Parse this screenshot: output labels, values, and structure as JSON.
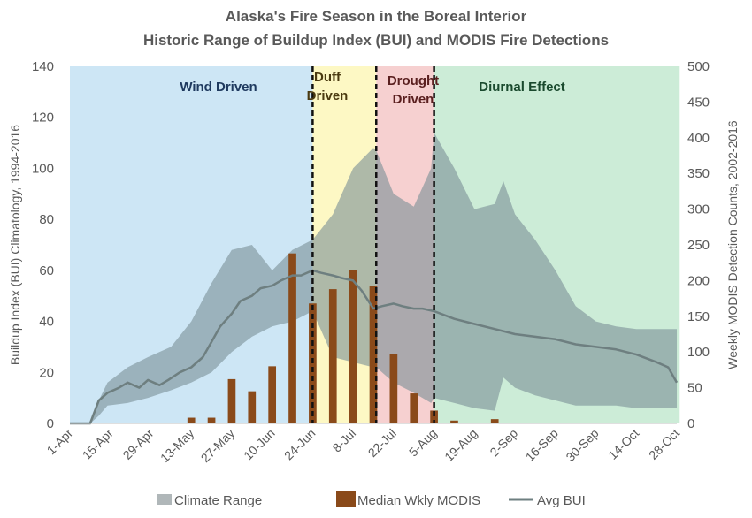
{
  "chart_data": {
    "type": "area",
    "title": "Alaska's Fire Season in the Boreal Interior",
    "subtitle": "Historic Range of Buildup Index (BUI) and MODIS Fire Detections",
    "ylabel": "Buildup Index (BUI) Climatology, 1994-2016",
    "y2label": "Weekly MODIS Detection Counts, 2002-2016",
    "ylim": [
      0,
      140
    ],
    "y2lim": [
      0,
      500
    ],
    "yticks": [
      "0",
      "20",
      "40",
      "60",
      "80",
      "100",
      "120",
      "140"
    ],
    "y2ticks": [
      "0",
      "50",
      "100",
      "150",
      "200",
      "250",
      "300",
      "350",
      "400",
      "450",
      "500"
    ],
    "x_ticks": [
      "1-Apr",
      "15-Apr",
      "29-Apr",
      "13-May",
      "27-May",
      "10-Jun",
      "24-Jun",
      "8-Jul",
      "22-Jul",
      "5-Aug",
      "19-Aug",
      "2-Sep",
      "16-Sep",
      "30-Sep",
      "14-Oct",
      "28-Oct"
    ],
    "regions": [
      {
        "label": "Wind Driven",
        "start_day": 0,
        "end_day": 84,
        "color": "#cde6f5"
      },
      {
        "label": "Duff Driven",
        "start_day": 84,
        "end_day": 106,
        "color": "#fdf8c4"
      },
      {
        "label": "Drought Driven",
        "start_day": 106,
        "end_day": 126,
        "color": "#f6d0d0"
      },
      {
        "label": "Diurnal Effect",
        "start_day": 126,
        "end_day": 211,
        "color": "#ccecd7"
      }
    ],
    "climate_range": {
      "name": "Climate Range",
      "day": [
        0,
        7,
        10,
        13,
        20,
        27,
        35,
        42,
        49,
        56,
        63,
        70,
        77,
        84,
        91,
        98,
        105,
        106,
        112,
        119,
        125,
        126,
        133,
        140,
        147,
        150,
        154,
        161,
        168,
        175,
        182,
        189,
        196,
        203,
        210
      ],
      "upper": [
        0,
        0,
        9,
        16,
        22,
        26,
        30,
        40,
        55,
        68,
        70,
        60,
        68,
        72,
        82,
        100,
        108,
        107,
        90,
        85,
        100,
        114,
        100,
        84,
        86,
        95,
        82,
        72,
        60,
        46,
        40,
        38,
        37,
        37,
        37
      ],
      "lower": [
        0,
        0,
        3,
        7,
        8,
        10,
        13,
        16,
        20,
        28,
        34,
        38,
        40,
        44,
        26,
        24,
        22,
        22,
        16,
        12,
        8,
        10,
        8,
        6,
        5,
        18,
        14,
        11,
        9,
        7,
        7,
        7,
        6,
        6,
        6
      ]
    },
    "avg_bui": {
      "name": "Avg BUI",
      "day": [
        0,
        7,
        10,
        13,
        17,
        20,
        24,
        27,
        31,
        34,
        38,
        42,
        46,
        49,
        52,
        56,
        59,
        63,
        66,
        70,
        73,
        77,
        80,
        84,
        87,
        91,
        94,
        98,
        101,
        105,
        108,
        112,
        115,
        119,
        122,
        126,
        133,
        140,
        147,
        154,
        161,
        168,
        175,
        182,
        189,
        196,
        203,
        207,
        210
      ],
      "value": [
        0,
        0,
        9,
        12,
        14,
        16,
        14,
        17,
        15,
        17,
        20,
        22,
        26,
        32,
        38,
        43,
        48,
        50,
        53,
        54,
        56,
        58,
        58,
        60,
        59,
        58,
        57,
        56,
        52,
        45,
        46,
        47,
        46,
        45,
        45,
        44,
        41,
        39,
        37,
        35,
        34,
        33,
        31,
        30,
        29,
        27,
        24,
        22,
        16
      ]
    },
    "median_modis": {
      "name": "Median Wkly MODIS",
      "week_start_day": [
        42,
        49,
        56,
        63,
        70,
        77,
        84,
        91,
        98,
        105,
        112,
        119,
        126,
        133,
        140,
        147,
        154
      ],
      "value": [
        8,
        8,
        62,
        45,
        80,
        238,
        168,
        188,
        215,
        193,
        97,
        42,
        18,
        4,
        0,
        6,
        0
      ]
    }
  },
  "legend": {
    "climate_range": "Climate Range",
    "median_modis": "Median Wkly MODIS",
    "avg_bui": "Avg BUI"
  },
  "colors": {
    "climate_range": "#7a9096",
    "modis": "#8a4a1a",
    "avg_bui": "#6e7f80",
    "text": "#595959",
    "title": "#595959"
  }
}
